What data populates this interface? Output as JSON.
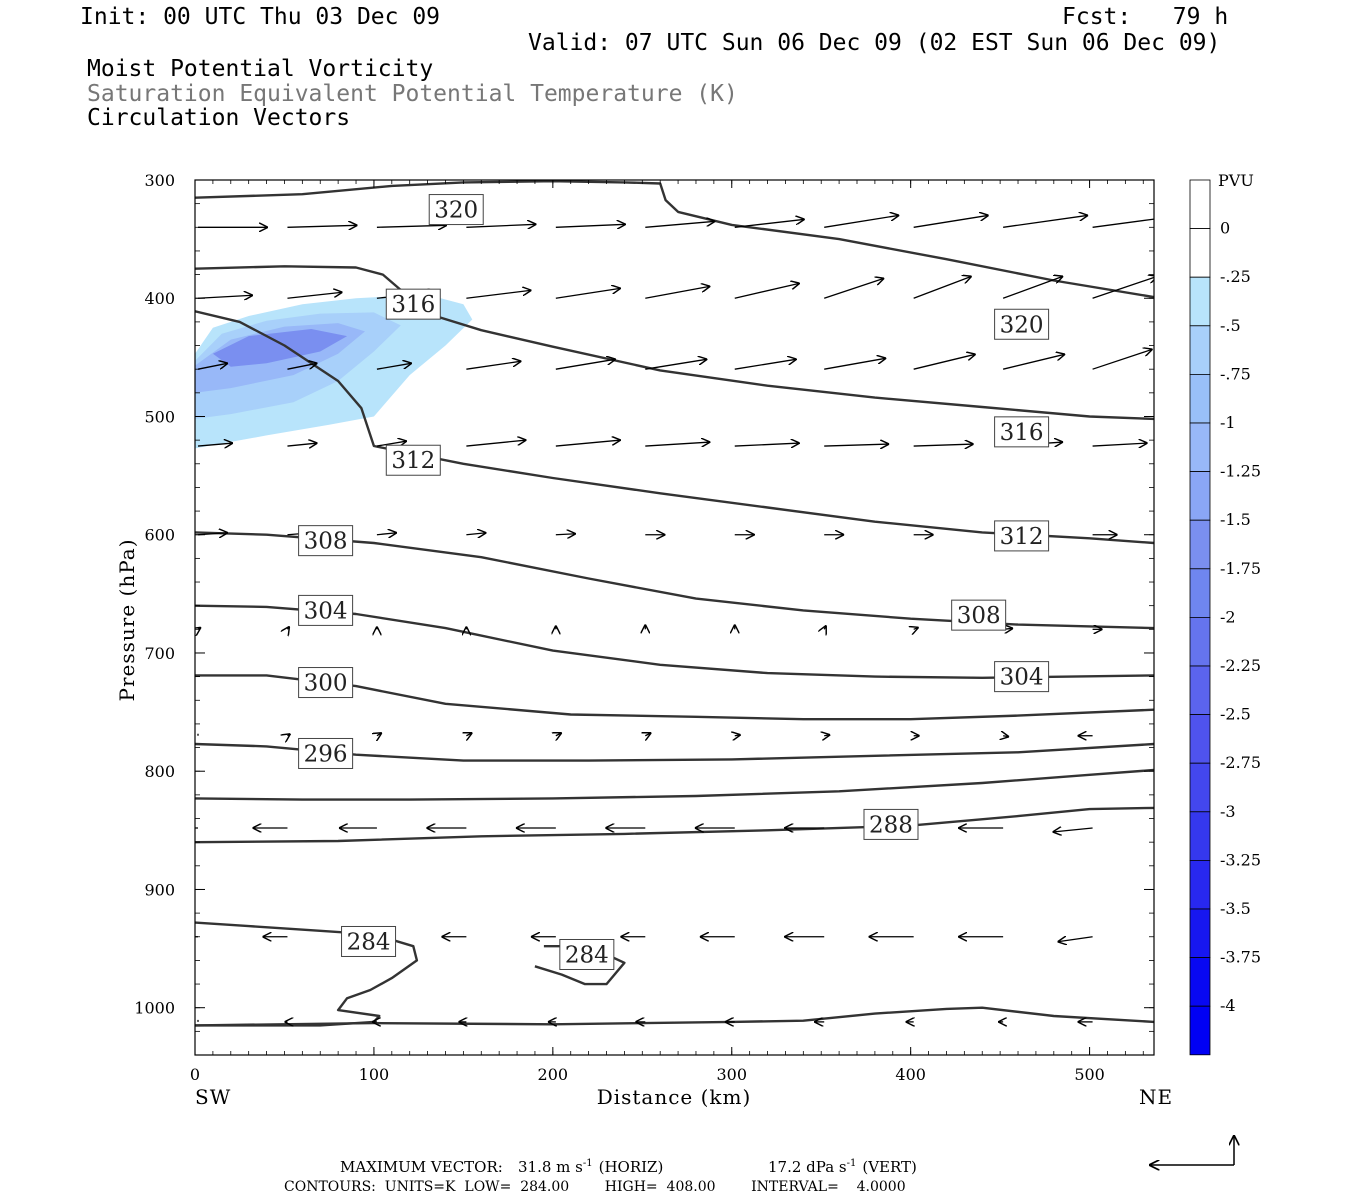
{
  "header": {
    "init": "Init: 00 UTC Thu 03 Dec 09",
    "fcst": "Fcst:   79 h",
    "valid": "Valid: 07 UTC Sun 06 Dec 09 (02 EST Sun 06 Dec 09)",
    "field1": "Moist Potential Vorticity",
    "field2": "Saturation Equivalent Potential Temperature (K)",
    "field3": "Circulation Vectors"
  },
  "footer": {
    "max_vector_label": "MAXIMUM VECTOR:",
    "max_horiz": "31.8 m s",
    "horiz_tag": "(HORIZ)",
    "max_vert": "17.2 dPa s",
    "vert_tag": "(VERT)",
    "exp": "-1",
    "contours": "CONTOURS:  UNITS=K  LOW=  284.00        HIGH=  408.00        INTERVAL=    4.0000"
  },
  "colors": {
    "pv_fills": [
      "#b8e4fb",
      "#a8d0fa",
      "#98b8f8",
      "#7a8ff0"
    ],
    "colorbar": [
      "#ffffff",
      "#ffffff",
      "#b8e4fb",
      "#a8d0fa",
      "#99c0f8",
      "#98b8f8",
      "#8aa6f6",
      "#7a8ff0",
      "#6f86ef",
      "#6574ee",
      "#5b64ee",
      "#4f53ed",
      "#4347ee",
      "#3538ee",
      "#2828ef",
      "#1717f0",
      "#0808f2",
      "#0000f4"
    ],
    "contour": "#333333"
  },
  "chart_data": {
    "type": "cross-section",
    "xlabel": "Distance (km)",
    "ylabel": "Pressure (hPa)",
    "x_end_left": "SW",
    "x_end_right": "NE",
    "xlim": [
      0,
      536
    ],
    "ylim": [
      300,
      1040
    ],
    "x_ticks": [
      "0",
      "100",
      "200",
      "300",
      "400",
      "500"
    ],
    "y_ticks": [
      "300",
      "400",
      "500",
      "600",
      "700",
      "800",
      "900",
      "1000"
    ],
    "colorbar_title": "PVU",
    "colorbar_labels": [
      "0",
      "-.25",
      "-.5",
      "-.75",
      "-1",
      "-1.25",
      "-1.5",
      "-1.75",
      "-2",
      "-2.25",
      "-2.5",
      "-2.75",
      "-3",
      "-3.25",
      "-3.5",
      "-3.75",
      "-4"
    ],
    "contour_labels": [
      {
        "text": "320",
        "x": 146,
        "p": 325
      },
      {
        "text": "320",
        "x": 462,
        "p": 422
      },
      {
        "text": "316",
        "x": 122,
        "p": 405
      },
      {
        "text": "316",
        "x": 462,
        "p": 513
      },
      {
        "text": "312",
        "x": 122,
        "p": 537
      },
      {
        "text": "312",
        "x": 462,
        "p": 601
      },
      {
        "text": "308",
        "x": 73,
        "p": 605
      },
      {
        "text": "308",
        "x": 438,
        "p": 668
      },
      {
        "text": "304",
        "x": 73,
        "p": 664
      },
      {
        "text": "304",
        "x": 462,
        "p": 720
      },
      {
        "text": "300",
        "x": 73,
        "p": 725
      },
      {
        "text": "296",
        "x": 73,
        "p": 785
      },
      {
        "text": "288",
        "x": 389,
        "p": 845
      },
      {
        "text": "284",
        "x": 97,
        "p": 944
      },
      {
        "text": "284",
        "x": 219,
        "p": 955
      }
    ],
    "theta_e_contours": [
      {
        "pts": [
          [
            0,
            315
          ],
          [
            60,
            312
          ],
          [
            110,
            305
          ],
          [
            150,
            302
          ],
          [
            200,
            301
          ],
          [
            240,
            302
          ],
          [
            260,
            303
          ],
          [
            263,
            317
          ],
          [
            270,
            327
          ],
          [
            300,
            338
          ],
          [
            360,
            350
          ],
          [
            420,
            367
          ],
          [
            480,
            385
          ],
          [
            536,
            399
          ]
        ]
      },
      {
        "pts": [
          [
            0,
            375
          ],
          [
            50,
            373
          ],
          [
            90,
            374
          ],
          [
            105,
            380
          ],
          [
            115,
            393
          ],
          [
            130,
            413
          ],
          [
            160,
            427
          ],
          [
            200,
            441
          ],
          [
            260,
            461
          ],
          [
            320,
            474
          ],
          [
            380,
            484
          ],
          [
            440,
            492
          ],
          [
            500,
            500
          ],
          [
            536,
            502
          ]
        ]
      },
      {
        "pts": [
          [
            0,
            411
          ],
          [
            25,
            420
          ],
          [
            50,
            440
          ],
          [
            80,
            470
          ],
          [
            93,
            493
          ],
          [
            100,
            525
          ],
          [
            150,
            540
          ],
          [
            200,
            552
          ],
          [
            260,
            565
          ],
          [
            320,
            577
          ],
          [
            380,
            589
          ],
          [
            440,
            598
          ],
          [
            500,
            603
          ],
          [
            536,
            607
          ]
        ]
      },
      {
        "pts": [
          [
            0,
            598
          ],
          [
            40,
            600
          ],
          [
            100,
            607
          ],
          [
            160,
            619
          ],
          [
            220,
            637
          ],
          [
            280,
            654
          ],
          [
            340,
            664
          ],
          [
            400,
            671
          ],
          [
            460,
            676
          ],
          [
            536,
            679
          ]
        ]
      },
      {
        "pts": [
          [
            0,
            660
          ],
          [
            40,
            661
          ],
          [
            90,
            667
          ],
          [
            140,
            679
          ],
          [
            200,
            698
          ],
          [
            260,
            710
          ],
          [
            320,
            717
          ],
          [
            380,
            720
          ],
          [
            440,
            721
          ],
          [
            536,
            719
          ]
        ]
      },
      {
        "pts": [
          [
            0,
            719
          ],
          [
            40,
            719
          ],
          [
            90,
            728
          ],
          [
            140,
            743
          ],
          [
            210,
            752
          ],
          [
            280,
            754
          ],
          [
            340,
            756
          ],
          [
            400,
            756
          ],
          [
            460,
            753
          ],
          [
            536,
            748
          ]
        ]
      },
      {
        "pts": [
          [
            0,
            777
          ],
          [
            40,
            779
          ],
          [
            90,
            786
          ],
          [
            150,
            791
          ],
          [
            220,
            791
          ],
          [
            300,
            790
          ],
          [
            380,
            787
          ],
          [
            460,
            784
          ],
          [
            536,
            777
          ]
        ]
      },
      {
        "pts": [
          [
            0,
            823
          ],
          [
            60,
            824
          ],
          [
            120,
            824
          ],
          [
            200,
            823
          ],
          [
            280,
            821
          ],
          [
            360,
            817
          ],
          [
            440,
            810
          ],
          [
            500,
            803
          ],
          [
            536,
            799
          ]
        ]
      },
      {
        "pts": [
          [
            0,
            860
          ],
          [
            80,
            859
          ],
          [
            160,
            855
          ],
          [
            240,
            853
          ],
          [
            320,
            850
          ],
          [
            400,
            846
          ],
          [
            460,
            838
          ],
          [
            500,
            832
          ],
          [
            536,
            831
          ]
        ]
      },
      {
        "pts": [
          [
            0,
            928
          ],
          [
            30,
            931
          ],
          [
            70,
            935
          ],
          [
            100,
            938
          ],
          [
            122,
            948
          ],
          [
            124,
            960
          ],
          [
            110,
            975
          ],
          [
            98,
            985
          ],
          [
            85,
            992
          ],
          [
            80,
            1002
          ],
          [
            103,
            1007
          ],
          [
            100,
            1012
          ],
          [
            70,
            1015
          ],
          [
            0,
            1015
          ]
        ]
      },
      {
        "pts": [
          [
            195,
            948
          ],
          [
            210,
            948
          ],
          [
            230,
            955
          ],
          [
            240,
            962
          ],
          [
            230,
            980
          ],
          [
            218,
            980
          ],
          [
            205,
            972
          ],
          [
            190,
            965
          ]
        ]
      },
      {
        "pts": [
          [
            0,
            1015
          ],
          [
            100,
            1013
          ],
          [
            200,
            1014
          ],
          [
            300,
            1012
          ],
          [
            340,
            1011
          ],
          [
            380,
            1005
          ],
          [
            420,
            1001
          ],
          [
            440,
            1000
          ],
          [
            480,
            1007
          ],
          [
            536,
            1012
          ]
        ]
      }
    ],
    "pv_regions": [
      {
        "level": "-.25 to -.5",
        "pts": [
          [
            0,
            447
          ],
          [
            10,
            425
          ],
          [
            30,
            415
          ],
          [
            60,
            405
          ],
          [
            90,
            400
          ],
          [
            130,
            397
          ],
          [
            150,
            405
          ],
          [
            155,
            418
          ],
          [
            140,
            440
          ],
          [
            120,
            465
          ],
          [
            100,
            500
          ],
          [
            75,
            507
          ],
          [
            40,
            516
          ],
          [
            0,
            527
          ]
        ]
      },
      {
        "level": "-.5 to -.75",
        "pts": [
          [
            0,
            453
          ],
          [
            15,
            430
          ],
          [
            40,
            419
          ],
          [
            70,
            413
          ],
          [
            100,
            412
          ],
          [
            115,
            423
          ],
          [
            100,
            445
          ],
          [
            80,
            470
          ],
          [
            55,
            488
          ],
          [
            20,
            498
          ],
          [
            0,
            502
          ]
        ]
      },
      {
        "level": "-.75 to -1",
        "pts": [
          [
            0,
            457
          ],
          [
            20,
            435
          ],
          [
            50,
            424
          ],
          [
            80,
            421
          ],
          [
            95,
            428
          ],
          [
            80,
            447
          ],
          [
            55,
            465
          ],
          [
            20,
            476
          ],
          [
            0,
            480
          ]
        ]
      },
      {
        "level": "-1 to -1.25",
        "pts": [
          [
            10,
            447
          ],
          [
            30,
            432
          ],
          [
            65,
            426
          ],
          [
            85,
            432
          ],
          [
            70,
            445
          ],
          [
            40,
            455
          ],
          [
            20,
            458
          ]
        ]
      }
    ],
    "vectors": [
      {
        "p": 340,
        "x": [
          0,
          50,
          100,
          150,
          200,
          250,
          300,
          350,
          400,
          450,
          500
        ],
        "u": [
          70,
          70,
          70,
          70,
          70,
          70,
          70,
          75,
          75,
          85,
          90
        ],
        "w": [
          0,
          -2,
          -2,
          -3,
          -3,
          -6,
          -8,
          -12,
          -12,
          -12,
          -12
        ]
      },
      {
        "p": 400,
        "x": [
          0,
          50,
          100,
          150,
          200,
          250,
          300,
          350,
          400,
          450,
          500
        ],
        "u": [
          55,
          55,
          60,
          65,
          65,
          65,
          65,
          60,
          58,
          60,
          65
        ],
        "w": [
          -3,
          -6,
          -6,
          -8,
          -10,
          -12,
          -15,
          -20,
          -22,
          -22,
          -22
        ]
      },
      {
        "p": 460,
        "x": [
          0,
          50,
          100,
          150,
          200,
          250,
          300,
          350,
          400,
          450,
          500
        ],
        "u": [
          30,
          30,
          35,
          55,
          60,
          62,
          62,
          62,
          62,
          62,
          60
        ],
        "w": [
          -6,
          -6,
          -6,
          -8,
          -10,
          -10,
          -10,
          -11,
          -15,
          -15,
          -20
        ]
      },
      {
        "p": 525,
        "x": [
          0,
          50,
          100,
          150,
          200,
          250,
          300,
          350,
          400,
          450,
          500
        ],
        "u": [
          35,
          30,
          30,
          60,
          65,
          65,
          65,
          65,
          60,
          60,
          55
        ],
        "w": [
          -3,
          -3,
          -5,
          -6,
          -6,
          -4,
          -3,
          -2,
          -2,
          -4,
          -3
        ]
      },
      {
        "p": 600,
        "x": [
          0,
          50,
          100,
          150,
          200,
          250,
          300,
          350,
          400,
          450,
          500
        ],
        "u": [
          30,
          25,
          20,
          20,
          20,
          20,
          20,
          20,
          20,
          25,
          25
        ],
        "w": [
          -2,
          -2,
          -2,
          -2,
          -1,
          0,
          0,
          0,
          0,
          0,
          0
        ]
      },
      {
        "p": 680,
        "x": [
          0,
          50,
          100,
          150,
          200,
          250,
          300,
          350,
          400,
          450,
          500
        ],
        "u": [
          3,
          2,
          0,
          0,
          0,
          0,
          0,
          2,
          5,
          10,
          10
        ],
        "w": [
          -2,
          -3,
          -3,
          -3,
          -4,
          -5,
          -5,
          -4,
          -2,
          -1,
          0
        ]
      },
      {
        "p": 770,
        "x": [
          0,
          50,
          100,
          150,
          200,
          250,
          300,
          350,
          400,
          450,
          500
        ],
        "u": [
          0,
          3,
          5,
          6,
          6,
          6,
          6,
          6,
          6,
          6,
          -15
        ],
        "w": [
          0,
          -2,
          -3,
          -3,
          -3,
          -3,
          -1,
          -1,
          0,
          1,
          0
        ]
      },
      {
        "p": 848,
        "x": [
          0,
          50,
          100,
          150,
          200,
          250,
          300,
          350,
          400,
          450,
          500
        ],
        "u": [
          -30,
          -35,
          -38,
          -40,
          -40,
          -40,
          -40,
          -40,
          -40,
          -45,
          -40
        ],
        "w": [
          0,
          0,
          0,
          0,
          0,
          0,
          0,
          0,
          0,
          0,
          4
        ]
      },
      {
        "p": 940,
        "x": [
          0,
          50,
          100,
          150,
          200,
          250,
          300,
          350,
          400,
          450,
          500
        ],
        "u": [
          -20,
          -25,
          -25,
          -25,
          -25,
          -25,
          -35,
          -40,
          -45,
          -45,
          -35
        ],
        "w": [
          0,
          0,
          0,
          0,
          0,
          0,
          0,
          0,
          0,
          0,
          5
        ]
      },
      {
        "p": 1012,
        "x": [
          0,
          50,
          100,
          150,
          200,
          250,
          300,
          350,
          400,
          450,
          500
        ],
        "u": [
          0,
          -3,
          -5,
          -8,
          -8,
          -10,
          -10,
          -10,
          -8,
          -5,
          -15
        ],
        "w": [
          0,
          0,
          0,
          0,
          0,
          0,
          0,
          0,
          0,
          0,
          0
        ]
      }
    ]
  }
}
